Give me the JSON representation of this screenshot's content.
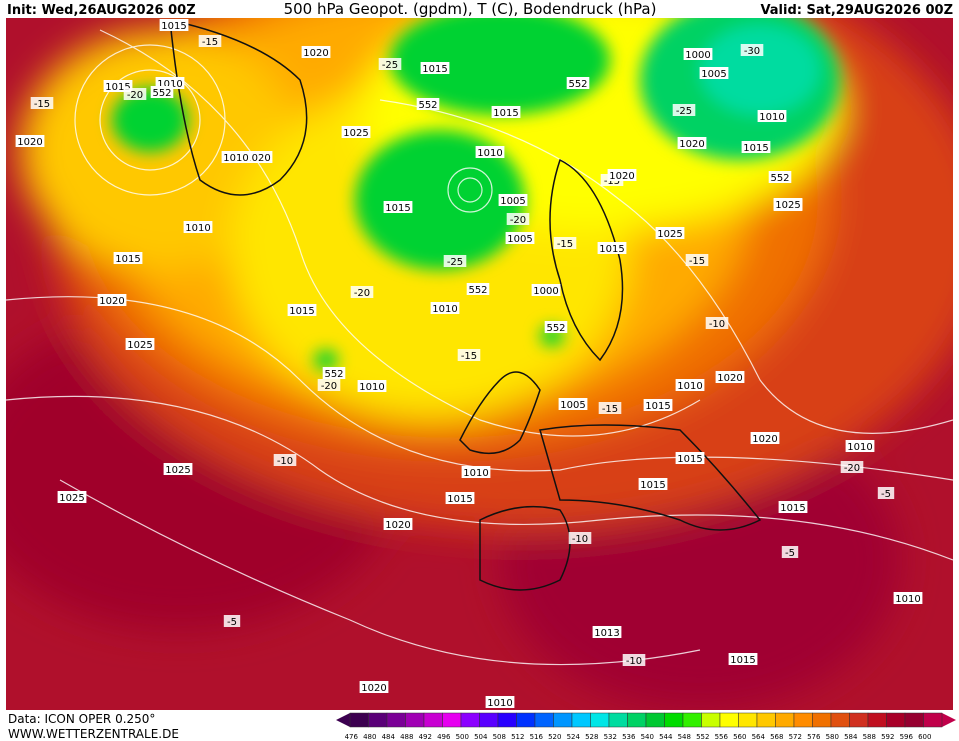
{
  "header": {
    "init": "Init: Wed,26AUG2026 00Z",
    "title": "500 hPa Geopot. (gpdm), T (C), Bodendruck (hPa)",
    "valid": "Valid: Sat,29AUG2026 00Z"
  },
  "footer": {
    "model": "Data: ICON OPER 0.250°",
    "site": "WWW.WETTERZENTRALE.DE"
  },
  "map": {
    "labels": [
      "1015",
      "-15",
      "1020",
      "1015",
      "1010",
      "552",
      "-20",
      "-15",
      "1020",
      "1020",
      "1015",
      "-25",
      "552",
      "1015",
      "552",
      "1000",
      "1005",
      "-30",
      "-25",
      "1010",
      "1020",
      "1015",
      "552",
      "-15",
      "1025",
      "1010",
      "1005",
      "1020",
      "-20",
      "1015",
      "1010",
      "1025",
      "1010",
      "-25",
      "552",
      "1005",
      "-15",
      "1000",
      "1015",
      "1010",
      "552",
      "1015",
      "1025",
      "-15",
      "1020",
      "-20",
      "1015",
      "1010",
      "552",
      "-20",
      "1010",
      "-15",
      "1025",
      "1025",
      "-10",
      "1015",
      "1020",
      "1015",
      "1005",
      "1010",
      "1020",
      "1015",
      "1010",
      "1015",
      "1020",
      "1025",
      "-5",
      "1025",
      "-10",
      "1013",
      "-5",
      "1010",
      "1015",
      "-10",
      "1020",
      "1010",
      "-10",
      "-15",
      "-20",
      "-5",
      "1015"
    ]
  },
  "scale": {
    "levels": [
      476,
      480,
      484,
      488,
      492,
      496,
      500,
      504,
      508,
      512,
      516,
      520,
      524,
      528,
      532,
      536,
      540,
      544,
      548,
      552,
      556,
      560,
      564,
      568,
      572,
      576,
      580,
      584,
      588,
      592,
      596,
      600
    ],
    "colors": [
      "#3c0050",
      "#5a0078",
      "#7a0096",
      "#a000b4",
      "#c800d2",
      "#e600f0",
      "#8c00ff",
      "#5a00ff",
      "#2800ff",
      "#0032ff",
      "#0064ff",
      "#0096ff",
      "#00c8ff",
      "#00e6e6",
      "#00dca0",
      "#00d264",
      "#00c832",
      "#00dc00",
      "#32f000",
      "#c8ff00",
      "#ffff00",
      "#ffe600",
      "#ffc800",
      "#ffaa00",
      "#ff8c00",
      "#f07000",
      "#e05010",
      "#d03020",
      "#c01020",
      "#a80028",
      "#960030",
      "#c0004a"
    ]
  }
}
